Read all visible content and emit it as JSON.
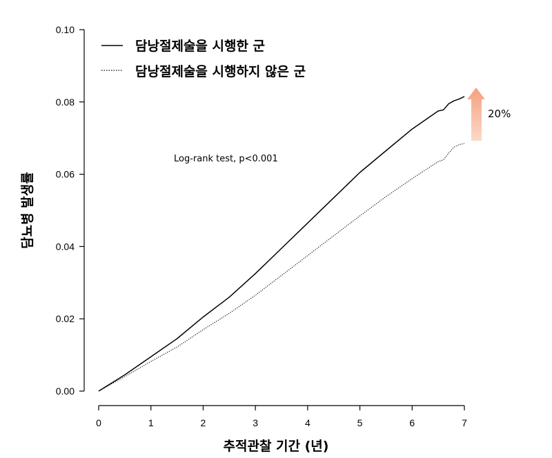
{
  "chart_data": {
    "type": "line",
    "title": "",
    "xlabel": "추적관찰 기간 (년)",
    "ylabel": "담뇨병 발생률",
    "xlim": [
      0,
      7
    ],
    "ylim": [
      0,
      0.1
    ],
    "x_ticks": [
      "0",
      "1",
      "2",
      "3",
      "4",
      "5",
      "6",
      "7"
    ],
    "y_ticks": [
      "0.00",
      "0.02",
      "0.04",
      "0.06",
      "0.08",
      "0.10"
    ],
    "grid": false,
    "legend_position": "top-left",
    "series": [
      {
        "name": "담낭절제술을 시행한 군",
        "style": "solid",
        "color": "#000000",
        "x": [
          0,
          0.5,
          1,
          1.5,
          2,
          2.5,
          3,
          3.5,
          4,
          4.5,
          5,
          5.5,
          6,
          6.5,
          6.6,
          6.7,
          6.8,
          6.9,
          7.0
        ],
        "y": [
          0,
          0.0045,
          0.0095,
          0.0145,
          0.0205,
          0.026,
          0.0325,
          0.0395,
          0.0465,
          0.0535,
          0.0605,
          0.0665,
          0.0725,
          0.0775,
          0.0778,
          0.0795,
          0.0803,
          0.0808,
          0.0815
        ]
      },
      {
        "name": "담낭절제술을 시행하지 않은 군",
        "style": "dotted",
        "color": "#000000",
        "x": [
          0,
          0.5,
          1,
          1.5,
          2,
          2.5,
          3,
          3.5,
          4,
          4.5,
          5,
          5.5,
          6,
          6.5,
          6.6,
          6.7,
          6.8,
          6.9,
          7.0
        ],
        "y": [
          0,
          0.004,
          0.0082,
          0.0122,
          0.017,
          0.0215,
          0.0265,
          0.032,
          0.0375,
          0.043,
          0.0485,
          0.0538,
          0.0588,
          0.0635,
          0.064,
          0.0658,
          0.0675,
          0.0682,
          0.0685
        ]
      }
    ],
    "annotations": [
      {
        "text": "Log-rank test, p<0.001"
      }
    ],
    "arrow": {
      "label": "20%",
      "color_top": "#f5a07f",
      "color_bottom": "#fcd9c7"
    }
  }
}
